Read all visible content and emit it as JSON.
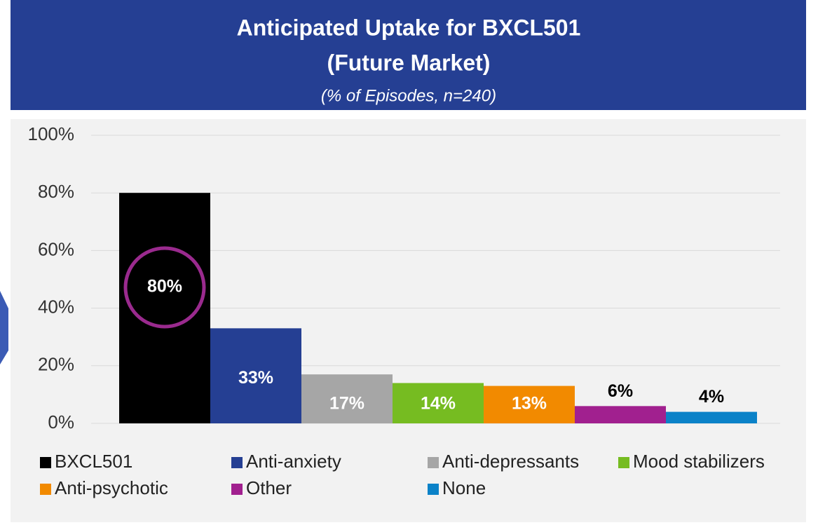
{
  "chart_data": {
    "type": "bar",
    "title": [
      "Anticipated Uptake for BXCL501",
      "(Future Market)"
    ],
    "subtitle": "(% of Episodes, n=240)",
    "categories": [
      "BXCL501",
      "Anti-anxiety",
      "Anti-depressants",
      "Mood stabilizers",
      "Anti-psychotic",
      "Other",
      "None"
    ],
    "values": [
      80,
      33,
      17,
      14,
      13,
      6,
      4
    ],
    "value_labels": [
      "80%",
      "33%",
      "17%",
      "14%",
      "13%",
      "6%",
      "4%"
    ],
    "colors": [
      "#000000",
      "#253f93",
      "#a6a6a6",
      "#76bc21",
      "#f28a00",
      "#a1208f",
      "#0b82c8"
    ],
    "ylim": [
      0,
      100
    ],
    "yticks": [
      {
        "value": 0,
        "label": "0%"
      },
      {
        "value": 20,
        "label": "20%"
      },
      {
        "value": 40,
        "label": "40%"
      },
      {
        "value": 60,
        "label": "60%"
      },
      {
        "value": 80,
        "label": "80%"
      },
      {
        "value": 100,
        "label": "100%"
      }
    ],
    "grid": true
  }
}
